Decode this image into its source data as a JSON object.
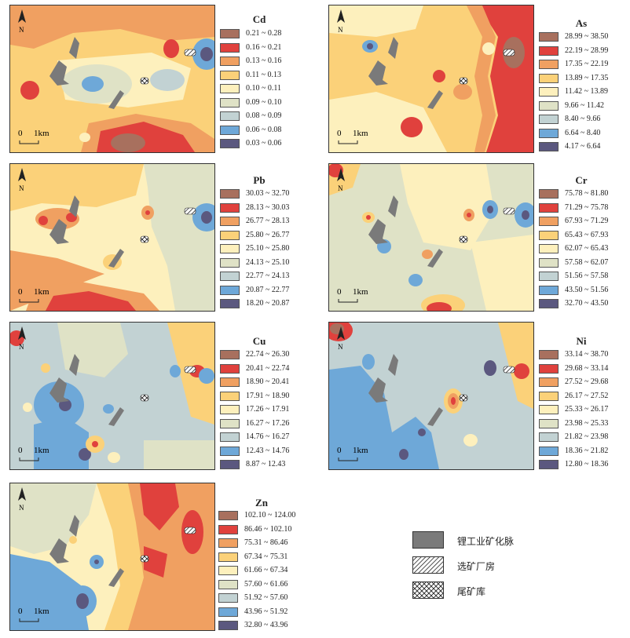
{
  "compass_label": "N",
  "scale_label": "0   1km",
  "scale_zero": "0",
  "scale_unit": "1km",
  "colors": [
    "#a8705e",
    "#e0413d",
    "#f0a061",
    "#fbd179",
    "#fdf0bd",
    "#dfe2c6",
    "#c2d2d3",
    "#6ea8d8",
    "#5b587f"
  ],
  "panels": [
    {
      "element": "Cd",
      "ranges": [
        "0.21 ~ 0.28",
        "0.16 ~ 0.21",
        "0.13 ~ 0.16",
        "0.11 ~ 0.13",
        "0.10 ~ 0.11",
        "0.09 ~ 0.10",
        "0.08 ~ 0.09",
        "0.06 ~ 0.08",
        "0.03 ~ 0.06"
      ]
    },
    {
      "element": "As",
      "ranges": [
        "28.99 ~ 38.50",
        "22.19 ~ 28.99",
        "17.35 ~ 22.19",
        "13.89 ~ 17.35",
        "11.42 ~ 13.89",
        "9.66 ~ 11.42",
        "8.40 ~ 9.66",
        "6.64 ~ 8.40",
        "4.17 ~ 6.64"
      ]
    },
    {
      "element": "Pb",
      "ranges": [
        "30.03 ~ 32.70",
        "28.13 ~ 30.03",
        "26.77 ~ 28.13",
        "25.80 ~ 26.77",
        "25.10 ~ 25.80",
        "24.13 ~ 25.10",
        "22.77 ~ 24.13",
        "20.87 ~ 22.77",
        "18.20 ~ 20.87"
      ]
    },
    {
      "element": "Cr",
      "ranges": [
        "75.78 ~ 81.80",
        "71.29 ~ 75.78",
        "67.93 ~ 71.29",
        "65.43 ~ 67.93",
        "62.07 ~ 65.43",
        "57.58 ~ 62.07",
        "51.56 ~ 57.58",
        "43.50 ~ 51.56",
        "32.70 ~ 43.50"
      ]
    },
    {
      "element": "Cu",
      "ranges": [
        "22.74 ~ 26.30",
        "20.41 ~ 22.74",
        "18.90 ~ 20.41",
        "17.91 ~ 18.90",
        "17.26 ~ 17.91",
        "16.27 ~ 17.26",
        "14.76 ~ 16.27",
        "12.43 ~ 14.76",
        "8.87 ~ 12.43"
      ]
    },
    {
      "element": "Ni",
      "ranges": [
        "33.14 ~ 38.70",
        "29.68 ~ 33.14",
        "27.52 ~ 29.68",
        "26.17 ~ 27.52",
        "25.33 ~ 26.17",
        "23.98 ~ 25.33",
        "21.82 ~ 23.98",
        "18.36 ~ 21.82",
        "12.80 ~ 18.36"
      ]
    },
    {
      "element": "Zn",
      "ranges": [
        "102.10 ~ 124.00",
        "86.46 ~ 102.10",
        "75.31 ~ 86.46",
        "67.34 ~ 75.31",
        "61.66 ~ 67.34",
        "57.60 ~ 61.66",
        "51.92 ~ 57.60",
        "43.96 ~ 51.92",
        "32.80 ~ 43.96"
      ]
    }
  ],
  "key": [
    {
      "label": "锂工业矿化脉",
      "type": "vein"
    },
    {
      "label": "选矿厂房",
      "type": "plant"
    },
    {
      "label": "尾矿库",
      "type": "tailings"
    }
  ]
}
